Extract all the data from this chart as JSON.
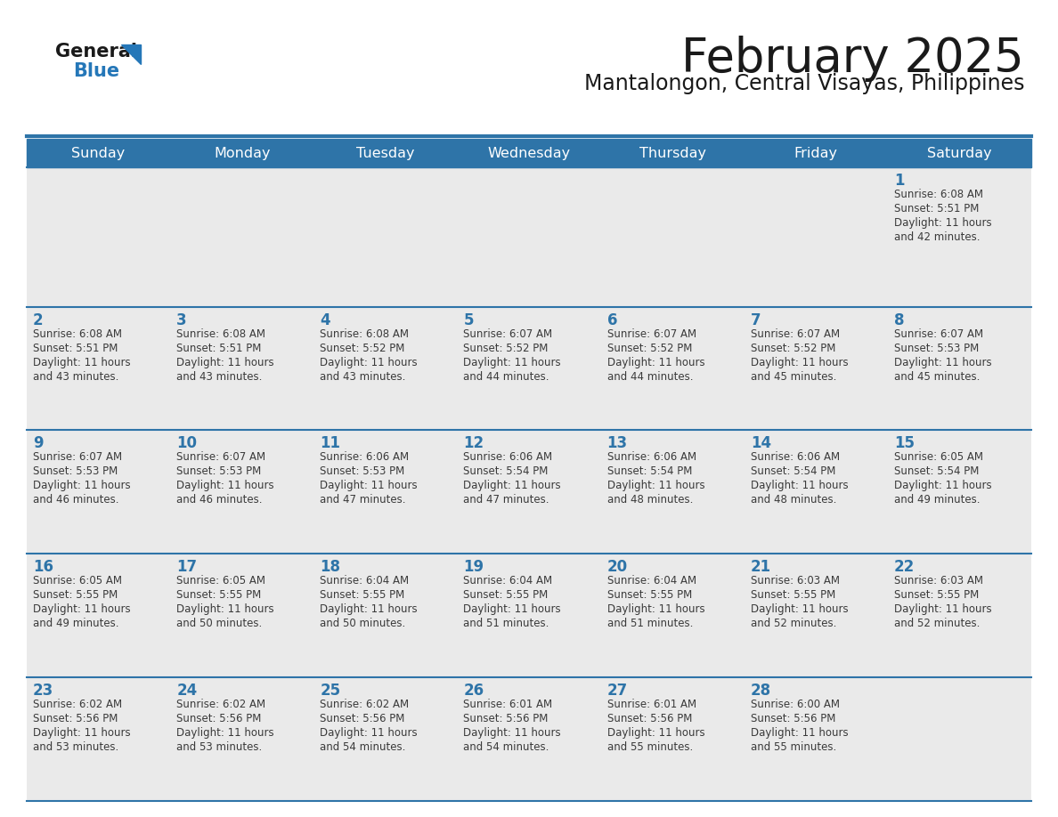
{
  "title": "February 2025",
  "subtitle": "Mantalongon, Central Visayas, Philippines",
  "days_of_week": [
    "Sunday",
    "Monday",
    "Tuesday",
    "Wednesday",
    "Thursday",
    "Friday",
    "Saturday"
  ],
  "header_bg_color": "#2E74A8",
  "header_text_color": "#FFFFFF",
  "cell_bg_color": "#EAEAEA",
  "day_number_color": "#2E74A8",
  "info_text_color": "#3A3A3A",
  "border_color": "#2E74A8",
  "title_color": "#1A1A1A",
  "subtitle_color": "#1A1A1A",
  "logo_dark_color": "#1A1A1A",
  "logo_blue_color": "#2577B8",
  "calendar_data": [
    [
      null,
      null,
      null,
      null,
      null,
      null,
      {
        "day": 1,
        "sunrise": "6:08 AM",
        "sunset": "5:51 PM",
        "daylight": "11 hours and 42 minutes."
      }
    ],
    [
      {
        "day": 2,
        "sunrise": "6:08 AM",
        "sunset": "5:51 PM",
        "daylight": "11 hours and 43 minutes."
      },
      {
        "day": 3,
        "sunrise": "6:08 AM",
        "sunset": "5:51 PM",
        "daylight": "11 hours and 43 minutes."
      },
      {
        "day": 4,
        "sunrise": "6:08 AM",
        "sunset": "5:52 PM",
        "daylight": "11 hours and 43 minutes."
      },
      {
        "day": 5,
        "sunrise": "6:07 AM",
        "sunset": "5:52 PM",
        "daylight": "11 hours and 44 minutes."
      },
      {
        "day": 6,
        "sunrise": "6:07 AM",
        "sunset": "5:52 PM",
        "daylight": "11 hours and 44 minutes."
      },
      {
        "day": 7,
        "sunrise": "6:07 AM",
        "sunset": "5:52 PM",
        "daylight": "11 hours and 45 minutes."
      },
      {
        "day": 8,
        "sunrise": "6:07 AM",
        "sunset": "5:53 PM",
        "daylight": "11 hours and 45 minutes."
      }
    ],
    [
      {
        "day": 9,
        "sunrise": "6:07 AM",
        "sunset": "5:53 PM",
        "daylight": "11 hours and 46 minutes."
      },
      {
        "day": 10,
        "sunrise": "6:07 AM",
        "sunset": "5:53 PM",
        "daylight": "11 hours and 46 minutes."
      },
      {
        "day": 11,
        "sunrise": "6:06 AM",
        "sunset": "5:53 PM",
        "daylight": "11 hours and 47 minutes."
      },
      {
        "day": 12,
        "sunrise": "6:06 AM",
        "sunset": "5:54 PM",
        "daylight": "11 hours and 47 minutes."
      },
      {
        "day": 13,
        "sunrise": "6:06 AM",
        "sunset": "5:54 PM",
        "daylight": "11 hours and 48 minutes."
      },
      {
        "day": 14,
        "sunrise": "6:06 AM",
        "sunset": "5:54 PM",
        "daylight": "11 hours and 48 minutes."
      },
      {
        "day": 15,
        "sunrise": "6:05 AM",
        "sunset": "5:54 PM",
        "daylight": "11 hours and 49 minutes."
      }
    ],
    [
      {
        "day": 16,
        "sunrise": "6:05 AM",
        "sunset": "5:55 PM",
        "daylight": "11 hours and 49 minutes."
      },
      {
        "day": 17,
        "sunrise": "6:05 AM",
        "sunset": "5:55 PM",
        "daylight": "11 hours and 50 minutes."
      },
      {
        "day": 18,
        "sunrise": "6:04 AM",
        "sunset": "5:55 PM",
        "daylight": "11 hours and 50 minutes."
      },
      {
        "day": 19,
        "sunrise": "6:04 AM",
        "sunset": "5:55 PM",
        "daylight": "11 hours and 51 minutes."
      },
      {
        "day": 20,
        "sunrise": "6:04 AM",
        "sunset": "5:55 PM",
        "daylight": "11 hours and 51 minutes."
      },
      {
        "day": 21,
        "sunrise": "6:03 AM",
        "sunset": "5:55 PM",
        "daylight": "11 hours and 52 minutes."
      },
      {
        "day": 22,
        "sunrise": "6:03 AM",
        "sunset": "5:55 PM",
        "daylight": "11 hours and 52 minutes."
      }
    ],
    [
      {
        "day": 23,
        "sunrise": "6:02 AM",
        "sunset": "5:56 PM",
        "daylight": "11 hours and 53 minutes."
      },
      {
        "day": 24,
        "sunrise": "6:02 AM",
        "sunset": "5:56 PM",
        "daylight": "11 hours and 53 minutes."
      },
      {
        "day": 25,
        "sunrise": "6:02 AM",
        "sunset": "5:56 PM",
        "daylight": "11 hours and 54 minutes."
      },
      {
        "day": 26,
        "sunrise": "6:01 AM",
        "sunset": "5:56 PM",
        "daylight": "11 hours and 54 minutes."
      },
      {
        "day": 27,
        "sunrise": "6:01 AM",
        "sunset": "5:56 PM",
        "daylight": "11 hours and 55 minutes."
      },
      {
        "day": 28,
        "sunrise": "6:00 AM",
        "sunset": "5:56 PM",
        "daylight": "11 hours and 55 minutes."
      },
      null
    ]
  ]
}
